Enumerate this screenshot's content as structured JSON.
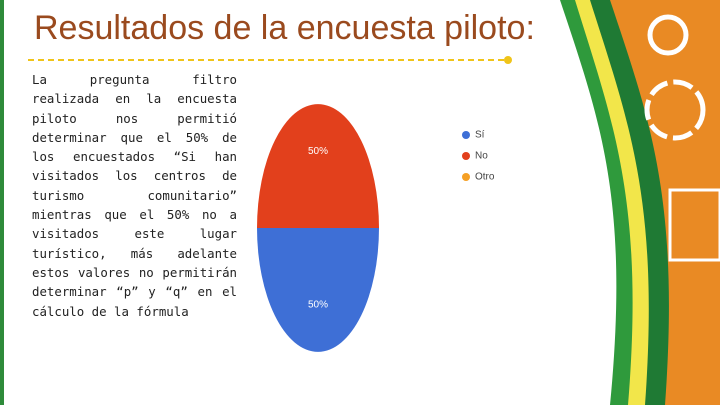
{
  "title": "Resultados de la encuesta piloto:",
  "body": "La pregunta filtro realizada en la encuesta piloto nos permitió determinar que el 50% de los encuestados “Si han visitados los centros de turismo comunitario” mientras que el 50% no a visitados este lugar turístico, más adelante estos valores no permitirán determinar “p” y “q” en el cálculo de la fórmula",
  "chart_data": {
    "type": "pie",
    "categories": [
      "Sí",
      "No",
      "Otro"
    ],
    "values": [
      50,
      50,
      0
    ],
    "value_labels": [
      "50%",
      "50%",
      null
    ],
    "colors": [
      "#3e6fd6",
      "#e2401c",
      "#f5a025"
    ],
    "legend": "right"
  }
}
